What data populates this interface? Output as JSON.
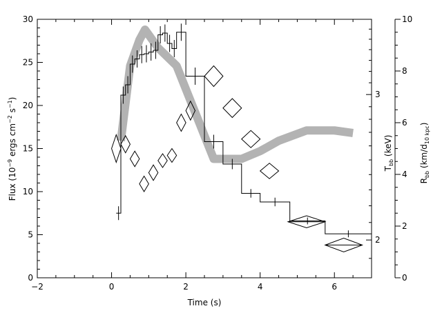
{
  "chart_data": {
    "type": "line",
    "xlabel": "Time (s)",
    "ylabel_left": {
      "pre": "Flux (10",
      "sup1": "−9",
      "mid": " ergs cm",
      "sup2": "−2",
      "mid2": " s",
      "sup3": "−1",
      "post": ")"
    },
    "ylabel_right1": {
      "pre": "T",
      "sub": "bb",
      "post": " (keV)"
    },
    "ylabel_right2": {
      "pre": "R",
      "sub": "bb",
      "mid": " (km/d",
      "sub2": "10 kpc",
      "post": ")"
    },
    "xlim": [
      -2,
      7
    ],
    "ylim_flux": [
      0,
      30
    ],
    "ylim_temperature_log": [
      1.8,
      3.7
    ],
    "ylim_radius": [
      0,
      10
    ],
    "x_ticks": [
      "−2",
      "0",
      "2",
      "4",
      "6"
    ],
    "y_ticks_flux": [
      "0",
      "5",
      "10",
      "15",
      "20",
      "25",
      "30"
    ],
    "y_ticks_temperature": [
      "2",
      "3"
    ],
    "y_ticks_radius": [
      "0",
      "2",
      "4",
      "6",
      "8",
      "10"
    ],
    "series": [
      {
        "kind": "flux-histogram",
        "edges": [
          0.125,
          0.25,
          0.375,
          0.5,
          0.625,
          0.75,
          0.875,
          1.0,
          1.125,
          1.25,
          1.375,
          1.5,
          1.625,
          1.75,
          2.0,
          2.5,
          3.0,
          3.5,
          4.0,
          4.8,
          5.75,
          7.0
        ],
        "values": [
          7.5,
          21.2,
          22.4,
          24.8,
          25.4,
          25.9,
          26.0,
          26.2,
          26.4,
          28.2,
          28.4,
          27.2,
          26.6,
          28.5,
          23.4,
          15.8,
          13.2,
          9.8,
          8.8,
          6.6,
          5.1
        ],
        "errors": [
          0.8,
          1.0,
          1.0,
          1.0,
          1.0,
          1.0,
          1.0,
          1.0,
          1.0,
          1.0,
          1.0,
          1.0,
          1.0,
          1.0,
          1.0,
          0.8,
          0.6,
          0.5,
          0.5,
          0.4,
          0.4
        ]
      },
      {
        "kind": "temperature-diamonds",
        "points": [
          {
            "t": 0.125,
            "dt": 0.125,
            "flux_pos": 15.0,
            "dflux": 1.6
          },
          {
            "t": 0.375,
            "dt": 0.125,
            "flux_pos": 15.5,
            "dflux": 1.0
          },
          {
            "t": 0.625,
            "dt": 0.125,
            "flux_pos": 13.8,
            "dflux": 0.9
          },
          {
            "t": 0.875,
            "dt": 0.125,
            "flux_pos": 10.9,
            "dflux": 0.9
          },
          {
            "t": 1.125,
            "dt": 0.125,
            "flux_pos": 12.2,
            "dflux": 0.9
          },
          {
            "t": 1.375,
            "dt": 0.125,
            "flux_pos": 13.6,
            "dflux": 0.8
          },
          {
            "t": 1.625,
            "dt": 0.125,
            "flux_pos": 14.2,
            "dflux": 0.8
          },
          {
            "t": 1.875,
            "dt": 0.125,
            "flux_pos": 18.0,
            "dflux": 1.0
          },
          {
            "t": 2.125,
            "dt": 0.125,
            "flux_pos": 19.4,
            "dflux": 1.1
          },
          {
            "t": 2.75,
            "dt": 0.25,
            "flux_pos": 23.4,
            "dflux": 1.2
          },
          {
            "t": 3.25,
            "dt": 0.25,
            "flux_pos": 19.7,
            "dflux": 1.1
          },
          {
            "t": 3.75,
            "dt": 0.25,
            "flux_pos": 16.1,
            "dflux": 1.0
          },
          {
            "t": 4.25,
            "dt": 0.25,
            "flux_pos": 12.4,
            "dflux": 0.9
          },
          {
            "t": 5.25,
            "dt": 0.5,
            "flux_pos": 6.5,
            "dflux": 0.7
          },
          {
            "t": 6.25,
            "dt": 0.5,
            "flux_pos": 3.8,
            "dflux": 0.8
          }
        ]
      },
      {
        "kind": "radius-band",
        "points": [
          [
            0.25,
            5.3
          ],
          [
            0.5,
            8.2
          ],
          [
            0.75,
            9.2
          ],
          [
            0.9,
            9.6
          ],
          [
            1.25,
            8.9
          ],
          [
            1.75,
            8.2
          ],
          [
            2.25,
            6.4
          ],
          [
            2.75,
            4.6
          ],
          [
            3.0,
            4.6
          ],
          [
            3.5,
            4.6
          ],
          [
            4.0,
            4.9
          ],
          [
            4.5,
            5.3
          ],
          [
            5.25,
            5.7
          ],
          [
            6.0,
            5.7
          ],
          [
            6.5,
            5.6
          ]
        ]
      }
    ]
  }
}
